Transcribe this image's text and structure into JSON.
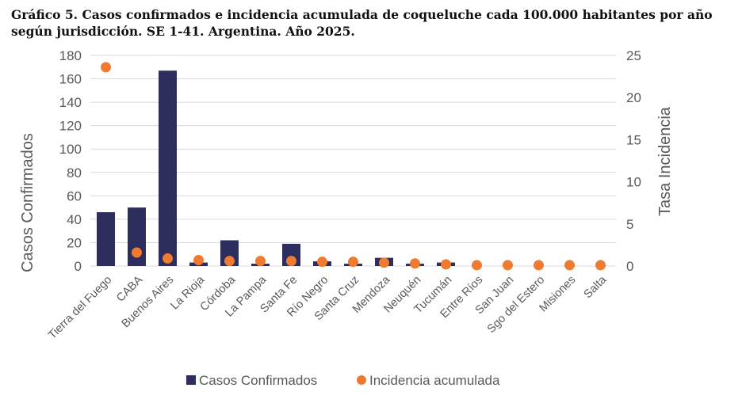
{
  "chart_data": {
    "type": "bar+scatter",
    "title": "Gráfico 5. Casos confirmados e incidencia acumulada de coqueluche cada 100.000 habitantes por año según jurisdicción. SE 1-41. Argentina. Año 2025.",
    "categories": [
      "Tierra del Fuego",
      "CABA",
      "Buenos Aires",
      "La Rioja",
      "Córdoba",
      "La Pampa",
      "Santa Fe",
      "Río Negro",
      "Santa Cruz",
      "Mendoza",
      "Neuquén",
      "Tucumán",
      "Entre Ríos",
      "San Juan",
      "Sgo del Estero",
      "Misiones",
      "Salta"
    ],
    "series": [
      {
        "name": "Casos Confirmados",
        "axis": "left",
        "type": "bar",
        "color": "#2e2e5e",
        "values": [
          46,
          50,
          167,
          3,
          22,
          2,
          19,
          4,
          2,
          7,
          2,
          3,
          0,
          0,
          0,
          0,
          0
        ]
      },
      {
        "name": "Incidencia acumulada",
        "axis": "right",
        "type": "scatter",
        "color": "#ee7b30",
        "values": [
          23.6,
          1.6,
          0.9,
          0.7,
          0.6,
          0.6,
          0.6,
          0.5,
          0.5,
          0.4,
          0.3,
          0.2,
          0.1,
          0.1,
          0.1,
          0.1,
          0.1
        ]
      }
    ],
    "ylabel": "Casos Confirmados",
    "ylim": [
      0,
      180
    ],
    "yticks": [
      0,
      20,
      40,
      60,
      80,
      100,
      120,
      140,
      160,
      180
    ],
    "y2label": "Tasa Incidencia",
    "y2lim": [
      0,
      25
    ],
    "y2ticks": [
      0,
      5,
      10,
      15,
      20,
      25
    ],
    "grid": true,
    "legend": "bottom"
  }
}
